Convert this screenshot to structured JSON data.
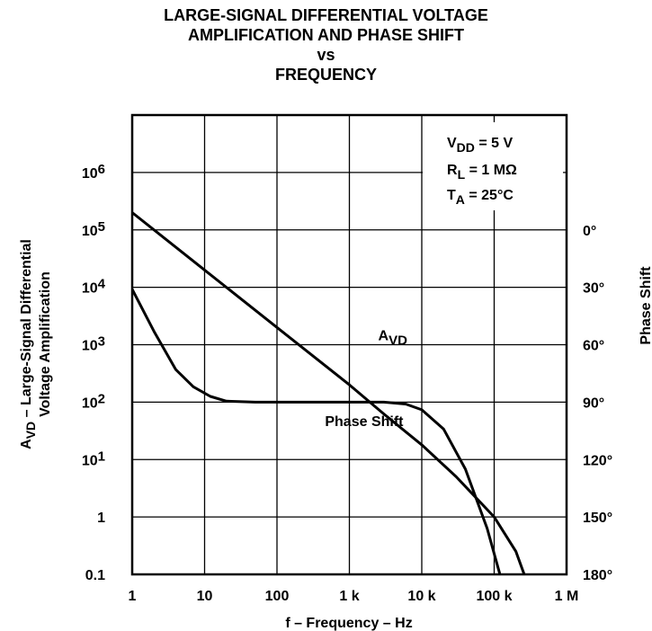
{
  "chart_data": {
    "type": "line",
    "title_lines": [
      "LARGE-SIGNAL DIFFERENTIAL VOLTAGE",
      "AMPLIFICATION AND PHASE SHIFT",
      "vs",
      "FREQUENCY"
    ],
    "xlabel": "f – Frequency – Hz",
    "ylabel": {
      "line1_prefix": "A",
      "line1_sub": "VD",
      "line1_rest": " – Large-Signal Differential",
      "line2": "Voltage Amplification"
    },
    "y2label": "Phase Shift",
    "xscale": "log",
    "yscale": "log",
    "xlim": [
      1,
      1000000
    ],
    "ylim": [
      0.1,
      10000000
    ],
    "y2lim_deg": [
      0,
      180
    ],
    "grid": true,
    "x_ticks": [
      {
        "value": 1,
        "label": "1"
      },
      {
        "value": 10,
        "label": "10"
      },
      {
        "value": 100,
        "label": "100"
      },
      {
        "value": 1000,
        "label": "1 k"
      },
      {
        "value": 10000,
        "label": "10 k"
      },
      {
        "value": 100000,
        "label": "100 k"
      },
      {
        "value": 1000000,
        "label": "1 M"
      }
    ],
    "y_ticks": [
      {
        "value": 0.1,
        "label": "0.1",
        "base": "",
        "exp": ""
      },
      {
        "value": 1,
        "label": "1",
        "base": "",
        "exp": ""
      },
      {
        "value": 10,
        "label": "",
        "base": "10",
        "exp": "1"
      },
      {
        "value": 100,
        "label": "",
        "base": "10",
        "exp": "2"
      },
      {
        "value": 1000,
        "label": "",
        "base": "10",
        "exp": "3"
      },
      {
        "value": 10000,
        "label": "",
        "base": "10",
        "exp": "4"
      },
      {
        "value": 100000,
        "label": "",
        "base": "10",
        "exp": "5"
      },
      {
        "value": 1000000,
        "label": "",
        "base": "10",
        "exp": "6"
      }
    ],
    "y2_ticks": [
      {
        "value": 0,
        "label": "0°"
      },
      {
        "value": 30,
        "label": "30°"
      },
      {
        "value": 60,
        "label": "60°"
      },
      {
        "value": 90,
        "label": "90°"
      },
      {
        "value": 120,
        "label": "120°"
      },
      {
        "value": 150,
        "label": "150°"
      },
      {
        "value": 180,
        "label": "180°"
      }
    ],
    "conditions": [
      {
        "main": "V",
        "sub": "DD",
        "rest": " = 5 V"
      },
      {
        "main": "R",
        "sub": "L",
        "rest": " = 1 MΩ"
      },
      {
        "main": "T",
        "sub": "A",
        "rest": " = 25°C"
      }
    ],
    "series": [
      {
        "name": "AVD",
        "label_main": "A",
        "label_sub": "VD",
        "axis": "left",
        "x": [
          1,
          10,
          100,
          1000,
          3000,
          10000,
          30000,
          100000,
          200000,
          260000
        ],
        "y": [
          200000,
          20000,
          2000,
          200,
          62,
          18,
          5,
          1,
          0.25,
          0.1
        ]
      },
      {
        "name": "Phase Shift",
        "axis": "right",
        "x": [
          1,
          2,
          4,
          7,
          12,
          20,
          50,
          200,
          1000,
          3000,
          6000,
          10000,
          20000,
          40000,
          80000,
          120000,
          160000
        ],
        "y_deg": [
          31,
          53,
          73,
          82,
          87,
          89.5,
          90,
          90,
          90,
          90,
          91,
          94,
          104,
          125,
          156,
          180,
          200
        ]
      }
    ],
    "annotations": {
      "avd_label_at": {
        "x": 2500,
        "y": 1200
      },
      "phase_label_at": {
        "x": 1600,
        "y": 38
      }
    }
  }
}
